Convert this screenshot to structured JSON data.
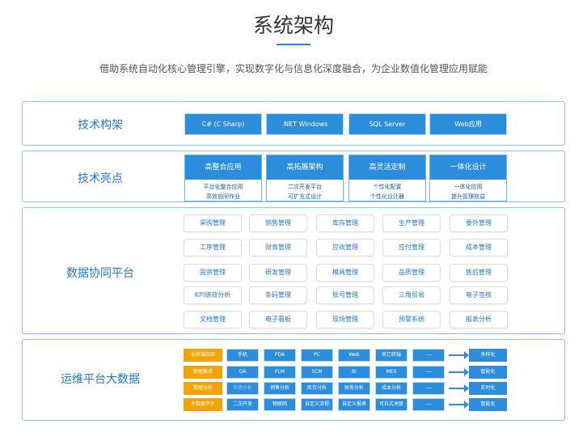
{
  "header": {
    "title": "系统架构",
    "subtitle": "借助系统自动化核心管理引擎，实现数字化与信息化深度融合，为企业数值化管理应用赋能"
  },
  "tech": {
    "label": "技术构架",
    "items": [
      "C#  (C Sharp)",
      ".NET Windows",
      "SQL Server",
      "Web应用"
    ]
  },
  "highlights": {
    "label": "技术亮点",
    "cards": [
      {
        "title": "高整合应用",
        "lines": [
          "平台化整合应用",
          "高效协同作业"
        ]
      },
      {
        "title": "高拓展架构",
        "lines": [
          "二次开发平台",
          "可扩充式设计"
        ]
      },
      {
        "title": "高灵活定制",
        "lines": [
          "个性化配置",
          "个性化设计器"
        ]
      },
      {
        "title": "一体化设计",
        "lines": [
          "一体化应用",
          "提升管理效益"
        ]
      }
    ]
  },
  "platform": {
    "label": "数据协同平台",
    "items": [
      "采购管理",
      "销售管理",
      "库存管理",
      "生产管理",
      "委外管理",
      "工序管理",
      "财务管理",
      "应收管理",
      "应付管理",
      "成本管理",
      "固资管理",
      "研发管理",
      "模具管理",
      "品质管理",
      "售后管理",
      "KPI绩效分析",
      "条码管理",
      "批号管理",
      "三角贸易",
      "电子签核",
      "文档管理",
      "电子看板",
      "现场管理",
      "预警系统",
      "报表分析"
    ]
  },
  "ops": {
    "label": "运维平台大数据",
    "rows": [
      {
        "head": "全终端应用",
        "cells": [
          "手机",
          "PDA",
          "PC",
          "Web",
          "其它终端",
          "----"
        ],
        "result": "多样化"
      },
      {
        "head": "数据集成",
        "cells": [
          "OA",
          "PLM",
          "SCM",
          "BI",
          "MES",
          "----"
        ],
        "result": "智能化"
      },
      {
        "head": "数据分析",
        "cells": [
          "市场分析",
          "销售分析",
          "库存分析",
          "财务分析",
          "成本分析",
          "----"
        ],
        "result": "实时化"
      },
      {
        "head": "大数据平台",
        "cells": [
          "二次开发",
          "物联网",
          "自定义流程",
          "自定义报表",
          "可拉式关联",
          "----"
        ],
        "result": "智能化"
      }
    ]
  }
}
